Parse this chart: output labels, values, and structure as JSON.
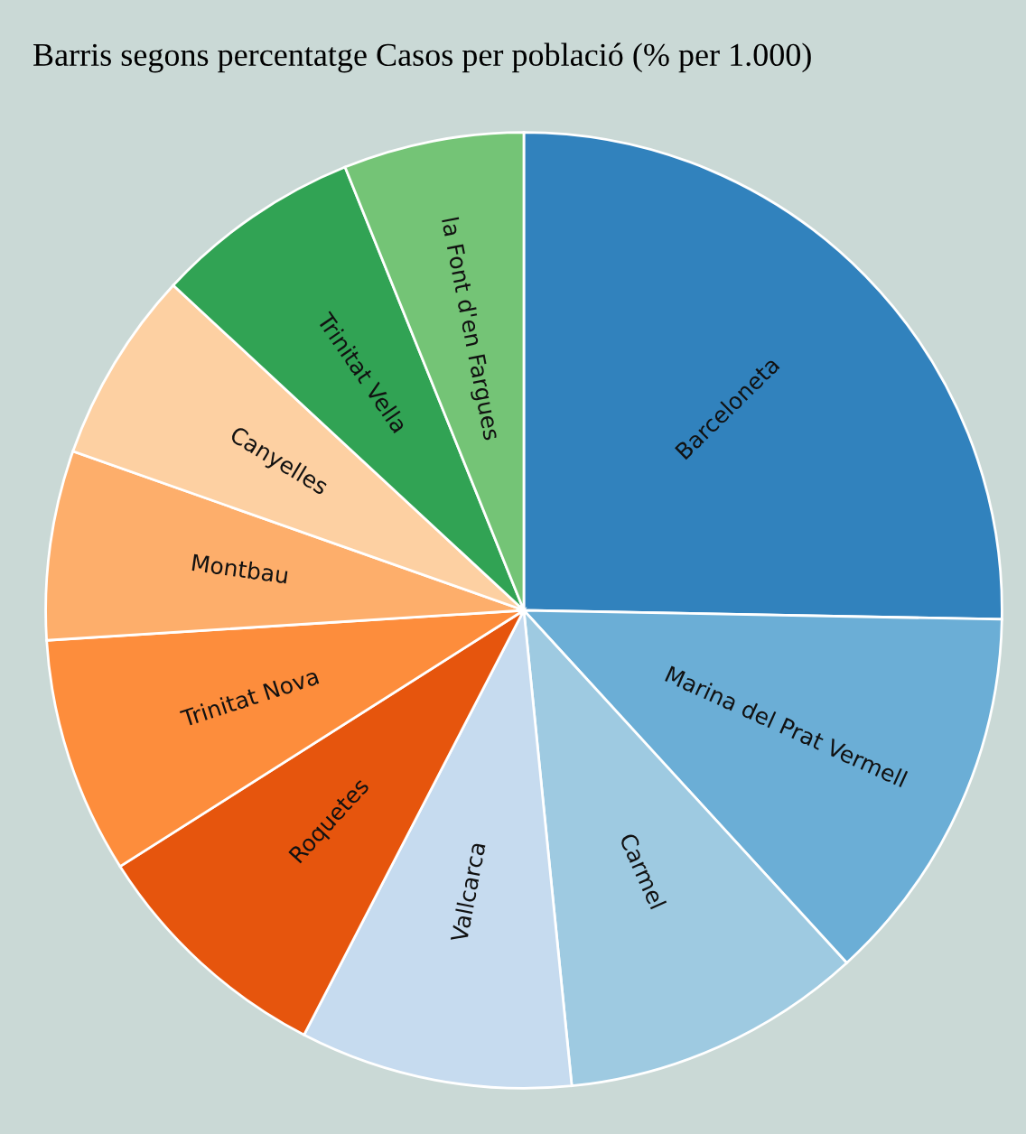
{
  "chart_data": {
    "type": "pie",
    "title": "Barris segons percentatge Casos per població (% per 1.000)",
    "categories": [
      "Barceloneta",
      "Marina del Prat Vermell",
      "Carmel",
      "Vallcarca",
      "Roquetes",
      "Trinitat Nova",
      "Montbau",
      "Canyelles",
      "Trinitat Vella",
      "la Font d'en Fargues"
    ],
    "values": [
      25.3,
      12.9,
      10.2,
      9.2,
      8.4,
      8.0,
      6.4,
      6.5,
      7.0,
      6.1
    ],
    "colors": [
      "#3182bd",
      "#6baed6",
      "#9ecae1",
      "#c6dbef",
      "#e6550d",
      "#fd8d3c",
      "#fdae6b",
      "#fdd0a2",
      "#31a354",
      "#74c476"
    ]
  }
}
